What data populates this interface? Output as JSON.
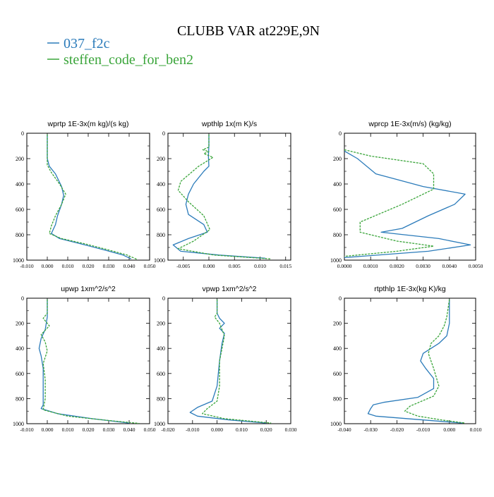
{
  "title": "CLUBB VAR at229E,9N",
  "legend": [
    {
      "name": "037_f2c",
      "color": "#2b7bba"
    },
    {
      "name": "steffen_code_for_ben2",
      "color": "#3aa53a"
    }
  ],
  "chart_data": [
    {
      "type": "line",
      "title": "wprtp  1E-3x(m kg)/(s kg)",
      "xlim": [
        -0.01,
        0.05
      ],
      "xticks": [
        "-0.010",
        "0.000",
        "0.010",
        "0.020",
        "0.030",
        "0.040",
        "0.050"
      ],
      "ylim": [
        1000,
        0
      ],
      "yticks": [
        "0",
        "200",
        "400",
        "600",
        "800",
        "1000"
      ],
      "series": [
        {
          "name": "037_f2c",
          "points": [
            [
              0.0,
              10
            ],
            [
              0.0,
              100
            ],
            [
              0.0,
              200
            ],
            [
              0.001,
              260
            ],
            [
              0.004,
              320
            ],
            [
              0.007,
              420
            ],
            [
              0.008,
              490
            ],
            [
              0.007,
              560
            ],
            [
              0.005,
              650
            ],
            [
              0.004,
              720
            ],
            [
              0.002,
              790
            ],
            [
              0.006,
              830
            ],
            [
              0.016,
              870
            ],
            [
              0.028,
              920
            ],
            [
              0.037,
              960
            ],
            [
              0.041,
              990
            ]
          ]
        },
        {
          "name": "steffen_code_for_ben2",
          "points": [
            [
              0.0,
              10
            ],
            [
              0.0,
              100
            ],
            [
              0.0,
              200
            ],
            [
              0.0,
              250
            ],
            [
              0.002,
              310
            ],
            [
              0.006,
              400
            ],
            [
              0.009,
              480
            ],
            [
              0.007,
              560
            ],
            [
              0.004,
              650
            ],
            [
              0.002,
              730
            ],
            [
              0.001,
              790
            ],
            [
              0.007,
              830
            ],
            [
              0.018,
              870
            ],
            [
              0.03,
              920
            ],
            [
              0.039,
              960
            ],
            [
              0.044,
              995
            ]
          ]
        }
      ]
    },
    {
      "type": "line",
      "title": "wpthlp  1x(m K)/s",
      "xlim": [
        -0.008,
        0.016
      ],
      "xticks": [
        "-0.005",
        "0.000",
        "0.005",
        "0.010",
        "0.015"
      ],
      "xtickvals": [
        -0.005,
        0.0,
        0.005,
        0.01,
        0.015
      ],
      "ylim": [
        1000,
        0
      ],
      "yticks": [
        "0",
        "200",
        "400",
        "600",
        "800",
        "1000"
      ],
      "series": [
        {
          "name": "037_f2c",
          "points": [
            [
              0.0,
              10
            ],
            [
              0.0,
              100
            ],
            [
              -0.0001,
              180
            ],
            [
              0.0,
              260
            ],
            [
              -0.001,
              300
            ],
            [
              -0.003,
              400
            ],
            [
              -0.004,
              480
            ],
            [
              -0.0045,
              560
            ],
            [
              -0.004,
              640
            ],
            [
              -0.001,
              720
            ],
            [
              -0.0003,
              780
            ],
            [
              -0.004,
              830
            ],
            [
              -0.007,
              880
            ],
            [
              -0.0055,
              930
            ],
            [
              0.002,
              960
            ],
            [
              0.011,
              985
            ]
          ]
        },
        {
          "name": "steffen_code_for_ben2",
          "points": [
            [
              0.0,
              10
            ],
            [
              0.0,
              110
            ],
            [
              -0.0012,
              130
            ],
            [
              0.0,
              145
            ],
            [
              -0.001,
              160
            ],
            [
              0.0008,
              190
            ],
            [
              -0.002,
              260
            ],
            [
              -0.0055,
              380
            ],
            [
              -0.006,
              450
            ],
            [
              -0.004,
              540
            ],
            [
              -0.001,
              650
            ],
            [
              0.0002,
              760
            ],
            [
              -0.003,
              850
            ],
            [
              -0.006,
              910
            ],
            [
              0.001,
              960
            ],
            [
              0.012,
              990
            ]
          ]
        }
      ]
    },
    {
      "type": "line",
      "title": "wprcp  1E-3x(m/s) (kg/kg)",
      "xlim": [
        0.0,
        0.005
      ],
      "xticks": [
        "0.0000",
        "0.0010",
        "0.0020",
        "0.0030",
        "0.0040",
        "0.0050"
      ],
      "ylim": [
        1000,
        0
      ],
      "yticks": [
        "0",
        "200",
        "400",
        "600",
        "800",
        "1000"
      ],
      "series": [
        {
          "name": "037_f2c",
          "points": [
            [
              0.0,
              140
            ],
            [
              0.0005,
              200
            ],
            [
              0.0012,
              320
            ],
            [
              0.003,
              420
            ],
            [
              0.0046,
              480
            ],
            [
              0.0042,
              560
            ],
            [
              0.0032,
              650
            ],
            [
              0.0022,
              750
            ],
            [
              0.0014,
              780
            ],
            [
              0.0036,
              830
            ],
            [
              0.0048,
              880
            ],
            [
              0.0032,
              930
            ],
            [
              0.0,
              980
            ]
          ]
        },
        {
          "name": "steffen_code_for_ben2",
          "points": [
            [
              0.0,
              130
            ],
            [
              0.001,
              180
            ],
            [
              0.003,
              240
            ],
            [
              0.0034,
              320
            ],
            [
              0.0034,
              440
            ],
            [
              0.0022,
              560
            ],
            [
              0.0006,
              700
            ],
            [
              0.0006,
              780
            ],
            [
              0.002,
              850
            ],
            [
              0.0034,
              890
            ],
            [
              0.002,
              930
            ],
            [
              0.0,
              970
            ]
          ]
        }
      ]
    },
    {
      "type": "line",
      "title": "upwp  1xm^2/s^2",
      "xlim": [
        -0.01,
        0.05
      ],
      "xticks": [
        "-0.010",
        "0.000",
        "0.010",
        "0.020",
        "0.030",
        "0.040",
        "0.050"
      ],
      "ylim": [
        1000,
        0
      ],
      "yticks": [
        "0",
        "200",
        "400",
        "600",
        "800",
        "1000"
      ],
      "series": [
        {
          "name": "037_f2c",
          "points": [
            [
              0.0,
              10
            ],
            [
              0.0,
              150
            ],
            [
              -0.001,
              250
            ],
            [
              -0.003,
              320
            ],
            [
              -0.004,
              400
            ],
            [
              -0.003,
              460
            ],
            [
              -0.002,
              560
            ],
            [
              -0.002,
              700
            ],
            [
              -0.002,
              850
            ],
            [
              -0.003,
              880
            ],
            [
              0.005,
              920
            ],
            [
              0.022,
              960
            ],
            [
              0.04,
              995
            ]
          ]
        },
        {
          "name": "steffen_code_for_ben2",
          "points": [
            [
              0.0,
              10
            ],
            [
              0.0,
              120
            ],
            [
              -0.002,
              160
            ],
            [
              0.001,
              220
            ],
            [
              -0.003,
              290
            ],
            [
              -0.001,
              350
            ],
            [
              0.0,
              420
            ],
            [
              -0.002,
              520
            ],
            [
              -0.001,
              650
            ],
            [
              -0.001,
              800
            ],
            [
              -0.002,
              890
            ],
            [
              0.01,
              940
            ],
            [
              0.03,
              975
            ],
            [
              0.045,
              998
            ]
          ]
        }
      ]
    },
    {
      "type": "line",
      "title": "vpwp  1xm^2/s^2",
      "xlim": [
        -0.02,
        0.03
      ],
      "xticks": [
        "-0.020",
        "-0.010",
        "0.000",
        "0.010",
        "0.020",
        "0.030"
      ],
      "ylim": [
        1000,
        0
      ],
      "yticks": [
        "0",
        "200",
        "400",
        "600",
        "800",
        "1000"
      ],
      "series": [
        {
          "name": "037_f2c",
          "points": [
            [
              0.0,
              10
            ],
            [
              0.0,
              120
            ],
            [
              0.001,
              160
            ],
            [
              0.003,
              200
            ],
            [
              0.001,
              240
            ],
            [
              0.003,
              280
            ],
            [
              0.002,
              360
            ],
            [
              0.001,
              500
            ],
            [
              0.0,
              700
            ],
            [
              -0.002,
              820
            ],
            [
              -0.008,
              870
            ],
            [
              -0.011,
              910
            ],
            [
              -0.008,
              940
            ],
            [
              0.005,
              970
            ],
            [
              0.02,
              995
            ]
          ]
        },
        {
          "name": "steffen_code_for_ben2",
          "points": [
            [
              0.0,
              10
            ],
            [
              0.0,
              120
            ],
            [
              -0.001,
              150
            ],
            [
              0.001,
              200
            ],
            [
              0.002,
              250
            ],
            [
              0.003,
              300
            ],
            [
              0.002,
              400
            ],
            [
              0.001,
              500
            ],
            [
              0.001,
              700
            ],
            [
              0.0,
              820
            ],
            [
              -0.004,
              880
            ],
            [
              -0.006,
              920
            ],
            [
              0.003,
              960
            ],
            [
              0.022,
              995
            ]
          ]
        }
      ]
    },
    {
      "type": "line",
      "title": "rtpthlp  1E-3x(kg K)/kg",
      "xlim": [
        -0.04,
        0.01
      ],
      "xticks": [
        "-0.040",
        "-0.030",
        "-0.020",
        "-0.010",
        "0.000",
        "0.010"
      ],
      "ylim": [
        1000,
        0
      ],
      "yticks": [
        "0",
        "200",
        "400",
        "600",
        "800",
        "1000"
      ],
      "series": [
        {
          "name": "037_f2c",
          "points": [
            [
              0.0,
              10
            ],
            [
              0.0,
              200
            ],
            [
              -0.001,
              300
            ],
            [
              -0.004,
              360
            ],
            [
              -0.01,
              440
            ],
            [
              -0.011,
              500
            ],
            [
              -0.009,
              560
            ],
            [
              -0.006,
              640
            ],
            [
              -0.006,
              720
            ],
            [
              -0.012,
              790
            ],
            [
              -0.025,
              830
            ],
            [
              -0.029,
              850
            ],
            [
              -0.03,
              880
            ],
            [
              -0.031,
              920
            ],
            [
              -0.028,
              940
            ],
            [
              -0.01,
              970
            ],
            [
              0.005,
              995
            ]
          ]
        },
        {
          "name": "steffen_code_for_ben2",
          "points": [
            [
              0.0,
              10
            ],
            [
              -0.001,
              150
            ],
            [
              -0.002,
              220
            ],
            [
              -0.004,
              300
            ],
            [
              -0.007,
              360
            ],
            [
              -0.008,
              440
            ],
            [
              -0.006,
              560
            ],
            [
              -0.004,
              700
            ],
            [
              -0.006,
              780
            ],
            [
              -0.015,
              860
            ],
            [
              -0.017,
              900
            ],
            [
              -0.012,
              940
            ],
            [
              -0.003,
              970
            ],
            [
              0.006,
              995
            ]
          ]
        }
      ]
    }
  ]
}
